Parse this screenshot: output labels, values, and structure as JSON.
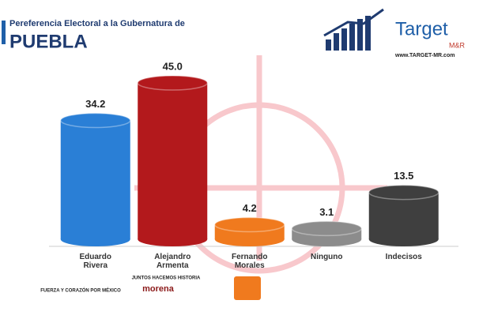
{
  "chart_data": {
    "type": "bar",
    "title": "Pereferencia Electoral a la Gubernatura de",
    "subtitle": "PUEBLA",
    "categories": [
      "Eduardo Rivera",
      "Alejandro Armenta",
      "Fernando Morales",
      "Ninguno",
      "Indecisos"
    ],
    "values": [
      34.2,
      45.0,
      4.2,
      3.1,
      13.5
    ],
    "value_labels": [
      "34.2",
      "45.0",
      "4.2",
      "3.1",
      "13.5"
    ],
    "colors": [
      "#2a7fd6",
      "#b3191c",
      "#f07a1e",
      "#8c8c8c",
      "#3f3f3f"
    ],
    "brand": {
      "name": "Target",
      "sub": "M&R",
      "url": "www.TARGET-MR.com"
    },
    "party_logos": [
      "FUERZA Y CORAZÓN POR MÉXICO",
      "JUNTOS HACEMOS HISTORIA",
      "morena"
    ]
  }
}
